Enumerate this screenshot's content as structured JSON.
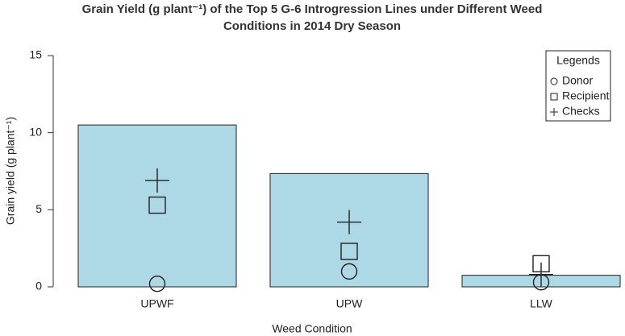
{
  "chart_data": {
    "type": "bar",
    "title": [
      "Grain Yield (g plant⁻¹)  of the Top 5 G-6 Introgression Lines under Different Weed",
      "Conditions  in 2014 Dry Season"
    ],
    "x_label": "Weed Condition",
    "y_label": "Grain yield (g plant⁻¹)",
    "categories": [
      "UPWF",
      "UPW",
      "LLW"
    ],
    "values": [
      10.5,
      7.35,
      0.75
    ],
    "color": "#add8e6",
    "points": [
      {
        "name": "Donor",
        "marker": "circle",
        "values": [
          0.2,
          1.0,
          0.3
        ]
      },
      {
        "name": "Recipient",
        "marker": "square",
        "values": [
          5.3,
          2.3,
          1.5
        ]
      },
      {
        "name": "Checks",
        "marker": "plus",
        "values": [
          6.9,
          4.2,
          0.8
        ]
      }
    ],
    "ylim": [
      0,
      15
    ],
    "yticks": [
      0,
      5,
      10,
      15
    ],
    "legend_title": "Legends",
    "legend": "top-right"
  }
}
